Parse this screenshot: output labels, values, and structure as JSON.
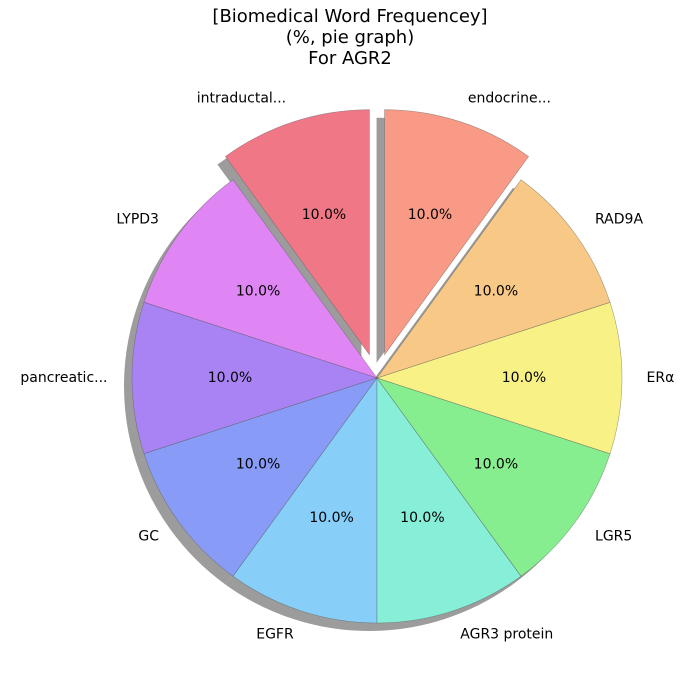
{
  "chart_data": {
    "type": "pie",
    "title_lines": [
      "[Biomedical Word Frequencey]",
      "(%, pie graph)",
      "For AGR2"
    ],
    "categories": [
      "intraductal...",
      "LYPD3",
      "pancreatic...",
      "GC",
      "EGFR",
      "AGR3 protein",
      "LGR5",
      "ERα",
      "RAD9A",
      "endocrine..."
    ],
    "values": [
      10.0,
      10.0,
      10.0,
      10.0,
      10.0,
      10.0,
      10.0,
      10.0,
      10.0,
      10.0
    ],
    "value_labels": [
      "10.0%",
      "10.0%",
      "10.0%",
      "10.0%",
      "10.0%",
      "10.0%",
      "10.0%",
      "10.0%",
      "10.0%",
      "10.0%"
    ],
    "colors": [
      "#f07886",
      "#e086f4",
      "#a983f3",
      "#889cf7",
      "#87cff8",
      "#87eed7",
      "#87ee90",
      "#f8f286",
      "#f8c986",
      "#f89a86"
    ],
    "exploded": [
      "intraductal...",
      "endocrine..."
    ],
    "start_angle_deg": 90,
    "direction": "counterclockwise",
    "shadow": true
  }
}
